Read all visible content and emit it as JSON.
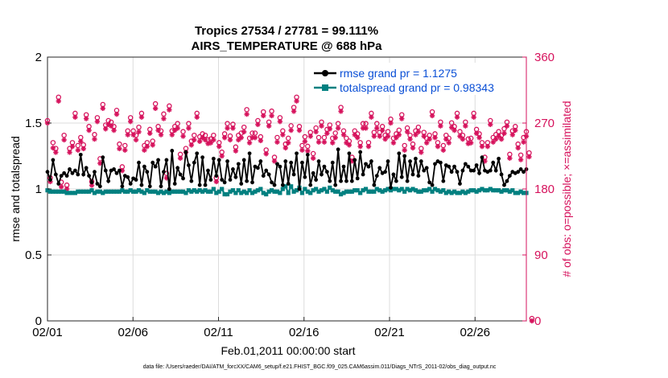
{
  "chart_data": {
    "type": "line",
    "title": "Tropics 27534 / 27781 = 99.111%",
    "subtitle": "AIRS_TEMPERATURE @ 688 hPa",
    "xlabel": "Feb.01,2011 00:00:00 start",
    "ylabel_left": "rmse and totalspread",
    "ylabel_right": "# of obs: o=possible; ×=assimilated",
    "xlim": [
      0,
      28
    ],
    "ylim_left": [
      0,
      2
    ],
    "ylim_right": [
      0,
      360
    ],
    "x_ticks": [
      0,
      5,
      10,
      15,
      20,
      25
    ],
    "x_tick_labels": [
      "02/01",
      "02/06",
      "02/11",
      "02/16",
      "02/21",
      "02/26"
    ],
    "y_left_ticks": [
      0,
      0.5,
      1,
      1.5,
      2
    ],
    "y_left_tick_labels": [
      "0",
      "0.5",
      "1",
      "1.5",
      "2"
    ],
    "y_right_ticks": [
      0,
      90,
      180,
      270,
      360
    ],
    "y_right_tick_labels": [
      "0",
      "90",
      "180",
      "270",
      "360"
    ],
    "grid": true,
    "legend_position": "top-right",
    "series": [
      {
        "name": "rmse grand pr = 1.1275",
        "axis": "left",
        "color": "#000000",
        "values": [
          1.13,
          1.07,
          1.22,
          1.11,
          1.04,
          1.1,
          1.12,
          1.1,
          1.15,
          1.12,
          1.14,
          1.11,
          1.26,
          1.11,
          1.16,
          1.1,
          1.05,
          1.13,
          1.04,
          1.02,
          1.24,
          1.14,
          1.06,
          1.14,
          1.15,
          1.12,
          1.14,
          1.02,
          1.1,
          1.09,
          1.04,
          1.08,
          1.07,
          1.2,
          1.03,
          1.17,
          1.13,
          1.02,
          1.2,
          1.17,
          1.22,
          1.02,
          1.13,
          1.22,
          1.0,
          1.29,
          1.04,
          1.16,
          1.11,
          1.08,
          1.28,
          1.18,
          1.06,
          1.2,
          1.27,
          1.03,
          1.24,
          1.03,
          1.14,
          1.07,
          1.23,
          1.1,
          1.22,
          1.07,
          1.05,
          1.21,
          1.07,
          1.15,
          1.09,
          1.19,
          1.04,
          1.22,
          1.06,
          1.27,
          1.05,
          1.17,
          1.16,
          1.21,
          1.1,
          1.14,
          1.11,
          1.05,
          1.03,
          1.19,
          1.17,
          1.03,
          1.21,
          1.04,
          1.2,
          1.11,
          1.27,
          1.0,
          1.2,
          1.09,
          1.26,
          1.03,
          1.12,
          1.07,
          1.21,
          1.11,
          1.17,
          1.13,
          1.06,
          1.2,
          1.03,
          1.3,
          1.06,
          1.17,
          1.06,
          1.27,
          1.06,
          1.22,
          1.08,
          1.28,
          1.11,
          1.19,
          1.17,
          1.21,
          1.03,
          1.1,
          1.16,
          1.12,
          1.13,
          1.21,
          1.01,
          1.11,
          1.06,
          1.27,
          1.09,
          1.25,
          1.06,
          1.21,
          1.11,
          1.23,
          1.1,
          1.21,
          1.14,
          1.16,
          1.05,
          1.03,
          1.19,
          1.21,
          1.2,
          1.06,
          1.18,
          1.17,
          1.13,
          1.17,
          1.13,
          1.04,
          1.14,
          1.19,
          1.17,
          1.14,
          1.14,
          1.18,
          1.12,
          1.24,
          1.14,
          1.13,
          1.14,
          1.2,
          1.14,
          1.23,
          1.11,
          1.03,
          1.06,
          1.1,
          1.13,
          1.12,
          1.13,
          1.15,
          1.13,
          1.15
        ]
      },
      {
        "name": "totalspread grand pr = 0.98343",
        "axis": "left",
        "color": "#008080",
        "values": [
          0.99,
          0.98,
          0.98,
          0.98,
          0.98,
          0.98,
          0.98,
          0.97,
          0.97,
          0.97,
          0.97,
          0.98,
          0.98,
          0.98,
          0.98,
          0.98,
          0.99,
          0.97,
          0.98,
          0.98,
          0.97,
          0.98,
          0.98,
          0.98,
          0.98,
          0.98,
          0.98,
          0.99,
          0.98,
          0.98,
          0.99,
          0.98,
          0.98,
          0.99,
          0.98,
          0.97,
          0.99,
          0.98,
          0.98,
          0.98,
          0.97,
          0.98,
          0.97,
          0.98,
          0.97,
          0.98,
          0.98,
          0.98,
          0.98,
          0.98,
          0.97,
          0.99,
          0.98,
          0.99,
          0.98,
          0.99,
          0.98,
          0.99,
          0.98,
          0.98,
          1.0,
          0.97,
          0.98,
          1.0,
          0.96,
          0.96,
          0.98,
          0.99,
          0.97,
          0.99,
          0.97,
          0.98,
          0.97,
          0.99,
          0.97,
          0.98,
          0.99,
          1.0,
          0.97,
          0.96,
          0.98,
          0.99,
          0.98,
          0.98,
          0.97,
          1.0,
          1.02,
          0.97,
          1.02,
          0.98,
          0.99,
          1.01,
          0.97,
          1.0,
          0.98,
          0.97,
          0.99,
          1.0,
          0.98,
          0.99,
          1.0,
          0.98,
          1.01,
          0.99,
          0.98,
          0.98,
          0.96,
          0.97,
          0.98,
          0.98,
          0.98,
          0.99,
          0.99,
          0.97,
          0.99,
          1.0,
          0.98,
          0.98,
          0.98,
          1.0,
          0.99,
          0.98,
          0.99,
          1.0,
          0.99,
          1.0,
          1.0,
          0.99,
          1.0,
          0.98,
          1.0,
          0.99,
          1.0,
          0.99,
          0.98,
          0.98,
          0.99,
          0.99,
          1.0,
          0.98,
          1.0,
          0.99,
          0.98,
          0.99,
          0.97,
          0.98,
          0.97,
          0.98,
          0.97,
          0.97,
          0.98,
          0.97,
          0.98,
          0.99,
          0.99,
          0.98,
          0.99,
          1.0,
          0.99,
          0.99,
          1.0,
          0.99,
          0.99,
          0.99,
          0.98,
          0.99,
          0.99,
          0.98,
          0.99,
          0.97,
          0.97,
          0.98,
          0.97,
          0.97
        ]
      },
      {
        "name": "# obs possible",
        "axis": "right",
        "color": "#d6125c",
        "marker": "o",
        "values": [
          270,
          192,
          240,
          232,
          302,
          186,
          250,
          182,
          232,
          240,
          280,
          236,
          247,
          237,
          278,
          262,
          187,
          251,
          274,
          218,
          292,
          264,
          270,
          268,
          262,
          284,
          238,
          207,
          236,
          256,
          274,
          256,
          250,
          261,
          280,
          236,
          240,
          258,
          242,
          293,
          262,
          256,
          279,
          198,
          290,
          256,
          262,
          266,
          224,
          255,
          232,
          266,
          242,
          250,
          280,
          248,
          252,
          250,
          244,
          245,
          250,
          192,
          240,
          227,
          252,
          266,
          249,
          265,
          234,
          250,
          253,
          261,
          285,
          246,
          253,
          253,
          270,
          248,
          282,
          230,
          268,
          283,
          220,
          247,
          274,
          256,
          238,
          246,
          263,
          288,
          302,
          262,
          236,
          248,
          235,
          254,
          225,
          260,
          247,
          268,
          247,
          258,
          264,
          246,
          253,
          266,
          288,
          256,
          246,
          242,
          220,
          256,
          252,
          240,
          266,
          266,
          240,
          280,
          254,
          266,
          254,
          262,
          250,
          255,
          272,
          246,
          252,
          257,
          278,
          236,
          260,
          250,
          238,
          256,
          261,
          232,
          254,
          246,
          250,
          282,
          252,
          240,
          268,
          236,
          250,
          246,
          267,
          262,
          280,
          255,
          250,
          268,
          245,
          246,
          280,
          258,
          252,
          240,
          220,
          240,
          270,
          247,
          251,
          255,
          250,
          259,
          268,
          224,
          256,
          262,
          238,
          223,
          247,
          255,
          226,
          0
        ]
      },
      {
        "name": "# obs assimilated",
        "axis": "right",
        "color": "#d6125c",
        "marker": "*",
        "values": [
          270,
          190,
          236,
          230,
          300,
          183,
          247,
          180,
          230,
          238,
          278,
          233,
          245,
          235,
          276,
          260,
          185,
          248,
          272,
          215,
          290,
          262,
          268,
          266,
          260,
          282,
          235,
          205,
          233,
          254,
          272,
          254,
          247,
          258,
          278,
          233,
          238,
          256,
          240,
          290,
          260,
          254,
          276,
          195,
          288,
          254,
          260,
          263,
          222,
          252,
          230,
          263,
          240,
          247,
          278,
          245,
          250,
          247,
          242,
          243,
          247,
          190,
          238,
          225,
          250,
          263,
          247,
          263,
          232,
          247,
          250,
          258,
          282,
          243,
          250,
          250,
          268,
          246,
          280,
          228,
          266,
          280,
          218,
          244,
          272,
          254,
          236,
          243,
          260,
          286,
          300,
          260,
          233,
          245,
          232,
          252,
          222,
          258,
          244,
          266,
          244,
          256,
          262,
          243,
          250,
          263,
          286,
          254,
          243,
          240,
          218,
          254,
          250,
          238,
          263,
          263,
          238,
          278,
          252,
          263,
          252,
          260,
          248,
          252,
          270,
          243,
          250,
          254,
          276,
          233,
          258,
          248,
          236,
          254,
          258,
          230,
          252,
          243,
          248,
          280,
          250,
          238,
          266,
          233,
          248,
          243,
          264,
          260,
          278,
          252,
          248,
          266,
          242,
          243,
          278,
          256,
          250,
          238,
          218,
          238,
          268,
          244,
          248,
          252,
          248,
          256,
          266,
          222,
          254,
          260,
          236,
          220,
          244,
          252,
          224,
          0
        ]
      }
    ]
  },
  "legend": {
    "rmse_label": "rmse grand pr = 1.1275",
    "spread_label": "totalspread grand pr = 0.98343"
  },
  "footer": {
    "file_text": "data file: /Users/raeder/DAI/ATM_forcXX/CAM6_setup/f.e21.FHIST_BGC.f09_025.CAM6assim.011/Diags_NTrS_2011-02/obs_diag_output.nc"
  },
  "colors": {
    "rmse": "#000000",
    "spread": "#008080",
    "obs": "#d6125c",
    "legend_text": "#0a4fd6",
    "grid": "#dcdcdc"
  }
}
